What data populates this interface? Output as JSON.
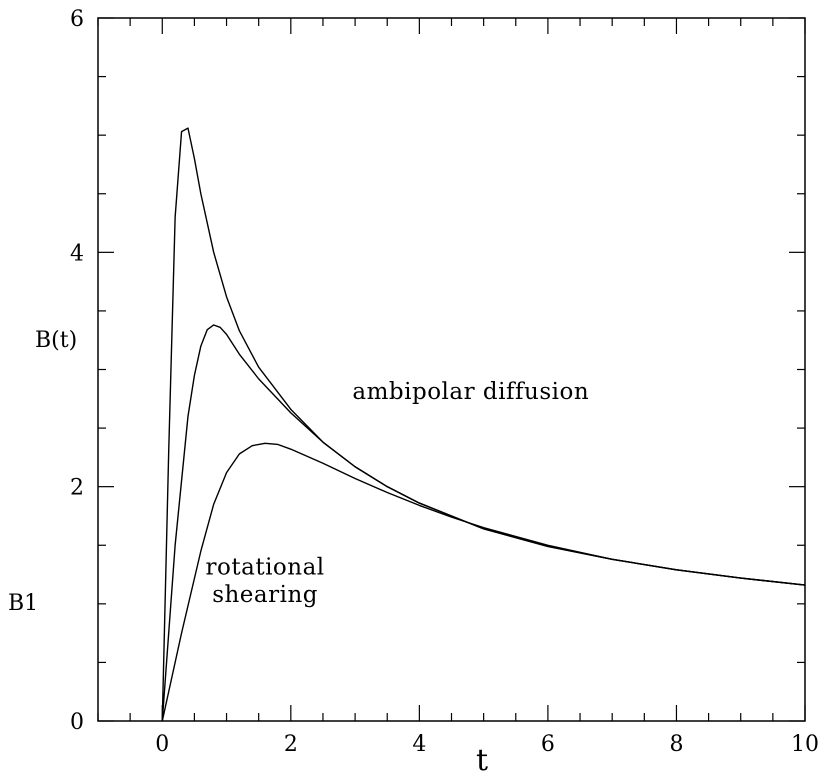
{
  "chart_data": {
    "type": "line",
    "title": "",
    "xlabel": "t",
    "ylabel": "B(t)",
    "xlim": [
      -1,
      10
    ],
    "ylim": [
      0,
      6
    ],
    "x_ticks": [
      0,
      2,
      4,
      6,
      8,
      10
    ],
    "y_ticks": [
      0,
      2,
      4,
      6
    ],
    "x_minor_step": 0.5,
    "y_minor_step": 0.5,
    "grid": false,
    "line_color": "#000000",
    "extra_labels": {
      "b1": "B1"
    },
    "annotations": [
      {
        "id": "ambipolar",
        "lines": [
          "ambipolar diffusion"
        ],
        "x": 4.8,
        "y": 2.75
      },
      {
        "id": "rotational",
        "lines": [
          "rotational",
          "shearing"
        ],
        "x": 1.6,
        "y": 1.25
      }
    ],
    "series": [
      {
        "x": [
          0,
          0.1,
          0.2,
          0.3,
          0.4,
          0.5,
          0.6,
          0.8,
          1.0,
          1.2,
          1.5,
          2.0,
          2.5,
          3.0,
          3.5,
          4.0,
          5.0,
          6.0,
          7.0,
          8.0,
          9.0,
          10.0
        ],
        "y": [
          0,
          2.3,
          4.3,
          5.03,
          5.06,
          4.8,
          4.5,
          4.0,
          3.62,
          3.33,
          3.02,
          2.66,
          2.38,
          2.17,
          2.0,
          1.86,
          1.64,
          1.49,
          1.38,
          1.29,
          1.22,
          1.16
        ]
      },
      {
        "x": [
          0,
          0.2,
          0.4,
          0.5,
          0.6,
          0.7,
          0.8,
          0.9,
          1.0,
          1.2,
          1.5,
          2.0,
          2.5,
          3.0,
          3.5,
          4.0,
          5.0,
          6.0,
          7.0,
          8.0,
          9.0,
          10.0
        ],
        "y": [
          0,
          1.5,
          2.6,
          2.95,
          3.2,
          3.34,
          3.38,
          3.36,
          3.3,
          3.13,
          2.92,
          2.63,
          2.38,
          2.17,
          2.0,
          1.86,
          1.64,
          1.49,
          1.38,
          1.29,
          1.22,
          1.16
        ]
      },
      {
        "x": [
          0,
          0.3,
          0.6,
          0.8,
          1.0,
          1.2,
          1.4,
          1.6,
          1.8,
          2.0,
          2.5,
          3.0,
          3.5,
          4.0,
          4.5,
          5.0,
          6.0,
          7.0,
          8.0,
          9.0,
          10.0
        ],
        "y": [
          0,
          0.75,
          1.45,
          1.85,
          2.12,
          2.28,
          2.35,
          2.37,
          2.36,
          2.32,
          2.2,
          2.07,
          1.95,
          1.84,
          1.74,
          1.65,
          1.5,
          1.38,
          1.29,
          1.22,
          1.16
        ]
      }
    ]
  }
}
